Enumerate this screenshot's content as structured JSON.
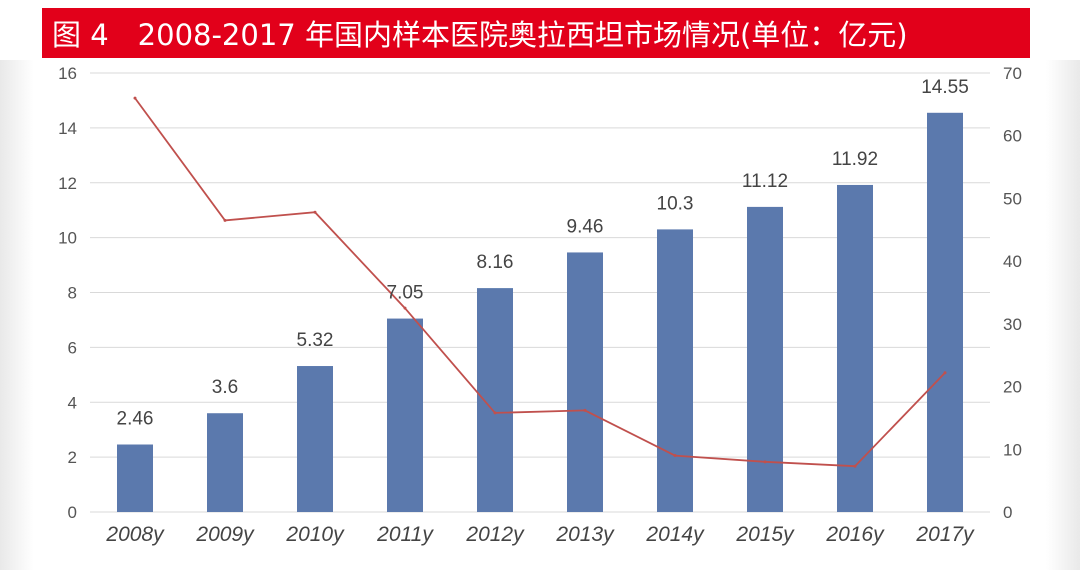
{
  "title": "图 4　2008-2017 年国内样本医院奥拉西坦市场情况(单位：亿元)",
  "colors": {
    "title_bar": "#e2001a",
    "bar": "#5b79ad",
    "line": "#c0504d",
    "grid": "#d9d9d9"
  },
  "chart_data": {
    "type": "bar",
    "categories": [
      "2008y",
      "2009y",
      "2010y",
      "2011y",
      "2012y",
      "2013y",
      "2014y",
      "2015y",
      "2016y",
      "2017y"
    ],
    "series": [
      {
        "type": "bar",
        "axis": "left",
        "values": [
          2.46,
          3.6,
          5.32,
          7.05,
          8.16,
          9.46,
          10.3,
          11.12,
          11.92,
          14.55
        ],
        "data_labels": [
          "2.46",
          "3.6",
          "5.32",
          "7.05",
          "8.16",
          "9.46",
          "10.3",
          "11.12",
          "11.92",
          "14.55"
        ]
      },
      {
        "type": "line",
        "axis": "right",
        "values": [
          66,
          46.5,
          47.8,
          32.5,
          15.8,
          16.2,
          9.0,
          8.0,
          7.3,
          22.2
        ]
      }
    ],
    "ylim_left": [
      0,
      16
    ],
    "ylim_right": [
      0,
      70
    ],
    "yticks_left": [
      "0",
      "2",
      "4",
      "6",
      "8",
      "10",
      "12",
      "14",
      "16"
    ],
    "yticks_right": [
      "0",
      "10",
      "20",
      "30",
      "40",
      "50",
      "60",
      "70"
    ],
    "grid": true,
    "legend": "none"
  }
}
